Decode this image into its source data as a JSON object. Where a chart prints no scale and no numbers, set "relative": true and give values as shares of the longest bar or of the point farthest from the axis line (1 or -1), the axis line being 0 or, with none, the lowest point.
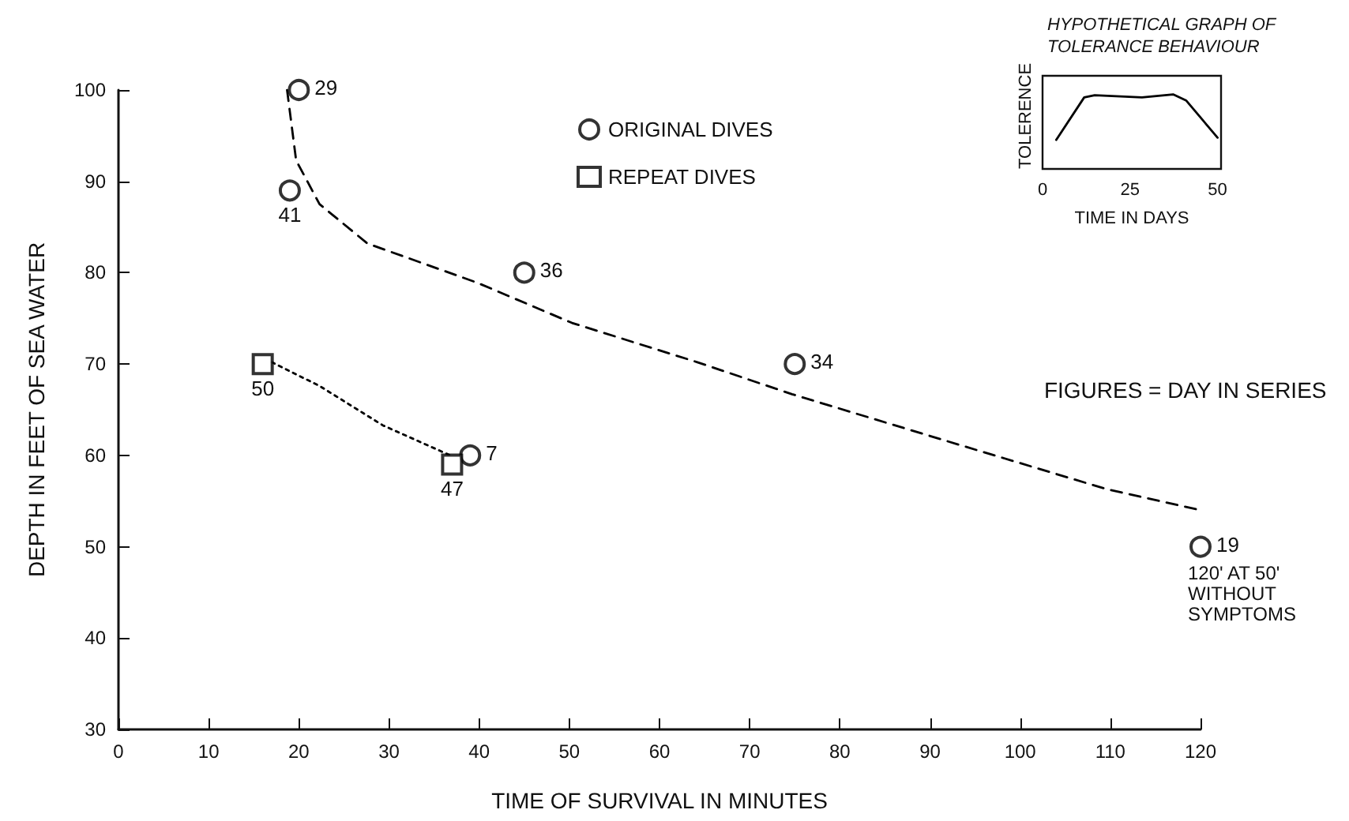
{
  "chart_data": [
    {
      "type": "scatter",
      "xlabel": "TIME OF SURVIVAL IN MINUTES",
      "ylabel": "DEPTH IN FEET OF SEA WATER",
      "xlim": [
        0,
        120
      ],
      "xticks": [
        0,
        10,
        20,
        30,
        40,
        50,
        60,
        70,
        80,
        90,
        100,
        110,
        120
      ],
      "ylim": [
        30,
        100
      ],
      "yticks": [
        30,
        40,
        50,
        60,
        70,
        80,
        90,
        100
      ],
      "grid": false,
      "legend": "top",
      "series": [
        {
          "name": "ORIGINAL DIVES",
          "color": "#000000",
          "marker": "circle",
          "x": [
            20,
            19,
            45,
            75,
            39,
            120
          ],
          "values": [
            100,
            89,
            80,
            70,
            60,
            50
          ]
        },
        {
          "name": "REPEAT DIVES",
          "color": "#000000",
          "marker": "square",
          "x": [
            16,
            37
          ],
          "values": [
            70,
            59
          ]
        },
        {
          "type": "line",
          "color": "#000000",
          "line_style": "dashed",
          "marker": "none",
          "x": [
            18.7,
            19.7,
            22.3,
            27.6,
            39.8,
            50.3,
            64.2,
            74.7,
            92.1,
            109.6,
            120
          ],
          "values": [
            100,
            92.3,
            87.5,
            83.2,
            78.9,
            74.5,
            70.2,
            66.7,
            61.5,
            56.3,
            54
          ]
        },
        {
          "type": "line",
          "color": "#000000",
          "line_style": "dotted",
          "marker": "none",
          "x": [
            17,
            22.3,
            29.3,
            36.8
          ],
          "values": [
            70.2,
            67.6,
            63.3,
            60
          ]
        }
      ],
      "annotations": [
        {
          "text": "29",
          "x": 20,
          "y": 100
        },
        {
          "text": "41",
          "x": 19,
          "y": 89
        },
        {
          "text": "36",
          "x": 45,
          "y": 80
        },
        {
          "text": "34",
          "x": 75,
          "y": 70
        },
        {
          "text": "7",
          "x": 39,
          "y": 60
        },
        {
          "text": "19",
          "x": 120,
          "y": 50
        },
        {
          "text": "50",
          "x": 16,
          "y": 70
        },
        {
          "text": "47",
          "x": 37,
          "y": 59
        },
        {
          "text": "120' AT 50' WITHOUT SYMPTOMS",
          "x": 120,
          "y": 50
        },
        "FIGURES = DAY IN SERIES"
      ]
    },
    {
      "type": "line",
      "title": "HYPOTHETICAL GRAPH OF TOLERANCE BEHAVIOUR",
      "xlabel": "TIME IN DAYS",
      "ylabel": "TOLERENCE",
      "relative": true,
      "xlim": [
        0,
        51
      ],
      "xticks": [
        0,
        25,
        50
      ],
      "series": [
        {
          "color": "#000000",
          "x": [
            3.9,
            11.9,
            14.9,
            28.4,
            37.3,
            41,
            50
          ],
          "values": [
            0.39,
            0.96,
            0.99,
            0.96,
            1,
            0.92,
            0.42
          ]
        }
      ]
    }
  ]
}
